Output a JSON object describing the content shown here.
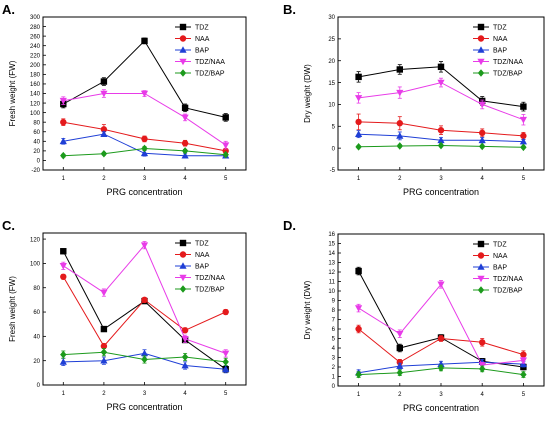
{
  "figure": {
    "panel_labels": [
      "A.",
      "B.",
      "C.",
      "D."
    ]
  },
  "colors": {
    "TDZ": "#000000",
    "NAA": "#e41a1c",
    "BAP": "#1f3fd6",
    "TDZ/NAA": "#e83be8",
    "TDZ/BAP": "#1c9a1c"
  },
  "chart_data": [
    {
      "panel": "A.",
      "type": "line",
      "xlabel": "PRG concentration",
      "ylabel": "Fresh weight (FW)",
      "x": [
        1,
        2,
        3,
        4,
        5
      ],
      "xlim": [
        0.5,
        5.5
      ],
      "ylim": [
        -20,
        300
      ],
      "yticks": [
        -20,
        0,
        20,
        40,
        60,
        80,
        100,
        120,
        140,
        160,
        180,
        200,
        220,
        240,
        260,
        280,
        300
      ],
      "legend_position": "top-right",
      "series": [
        {
          "name": "TDZ",
          "marker": "square",
          "values": [
            118,
            165,
            250,
            110,
            90
          ],
          "errors": [
            8,
            8,
            6,
            8,
            8
          ]
        },
        {
          "name": "NAA",
          "marker": "circle",
          "values": [
            80,
            65,
            45,
            36,
            20
          ],
          "errors": [
            7,
            10,
            6,
            6,
            5
          ]
        },
        {
          "name": "BAP",
          "marker": "triangle-up",
          "values": [
            40,
            55,
            15,
            10,
            10
          ],
          "errors": [
            6,
            5,
            6,
            5,
            4
          ]
        },
        {
          "name": "TDZ/NAA",
          "marker": "triangle-down",
          "values": [
            125,
            140,
            140,
            90,
            32
          ],
          "errors": [
            8,
            8,
            6,
            7,
            8
          ]
        },
        {
          "name": "TDZ/BAP",
          "marker": "diamond",
          "values": [
            10,
            14,
            25,
            20,
            12
          ],
          "errors": [
            3,
            3,
            4,
            3,
            3
          ]
        }
      ]
    },
    {
      "panel": "B.",
      "type": "line",
      "xlabel": "PRG concentration",
      "ylabel": "Dry weight (DW)",
      "x": [
        1,
        2,
        3,
        4,
        5
      ],
      "xlim": [
        0.5,
        5.5
      ],
      "ylim": [
        -5,
        30
      ],
      "yticks": [
        -5,
        0,
        5,
        10,
        15,
        20,
        25,
        30
      ],
      "legend_position": "top-right",
      "series": [
        {
          "name": "TDZ",
          "marker": "square",
          "values": [
            16.3,
            18,
            18.6,
            10.8,
            9.5
          ],
          "errors": [
            1.2,
            1.1,
            1.2,
            1.0,
            1.0
          ]
        },
        {
          "name": "NAA",
          "marker": "circle",
          "values": [
            6,
            5.7,
            4.1,
            3.5,
            2.8
          ],
          "errors": [
            1.8,
            1.5,
            1.0,
            0.9,
            0.8
          ]
        },
        {
          "name": "BAP",
          "marker": "triangle-up",
          "values": [
            3.2,
            2.8,
            1.8,
            1.8,
            1.5
          ],
          "errors": [
            0.8,
            0.9,
            0.6,
            0.6,
            0.5
          ]
        },
        {
          "name": "TDZ/NAA",
          "marker": "triangle-down",
          "values": [
            11.5,
            12.7,
            15,
            10,
            6.5
          ],
          "errors": [
            1.2,
            1.3,
            1.0,
            1.0,
            1.2
          ]
        },
        {
          "name": "TDZ/BAP",
          "marker": "diamond",
          "values": [
            0.3,
            0.5,
            0.6,
            0.4,
            0.2
          ],
          "errors": [
            0.3,
            0.3,
            0.3,
            0.3,
            0.3
          ]
        }
      ]
    },
    {
      "panel": "C.",
      "type": "line",
      "xlabel": "PRG concentration",
      "ylabel": "Fresh weight (FW)",
      "x": [
        1,
        2,
        3,
        4,
        5
      ],
      "xlim": [
        0.5,
        5.5
      ],
      "ylim": [
        0,
        125
      ],
      "yticks": [
        0,
        20,
        40,
        60,
        80,
        100,
        120
      ],
      "legend_position": "top-right",
      "series": [
        {
          "name": "TDZ",
          "marker": "square",
          "values": [
            110,
            46,
            69,
            37,
            13
          ],
          "errors": [
            2,
            2,
            2,
            2,
            2
          ]
        },
        {
          "name": "NAA",
          "marker": "circle",
          "values": [
            89,
            32,
            70,
            45,
            60
          ],
          "errors": [
            2,
            2,
            2,
            2,
            2
          ]
        },
        {
          "name": "BAP",
          "marker": "triangle-up",
          "values": [
            19,
            20,
            26,
            16,
            13
          ],
          "errors": [
            3,
            3,
            3,
            3,
            3
          ]
        },
        {
          "name": "TDZ/NAA",
          "marker": "triangle-down",
          "values": [
            98,
            76,
            115,
            38,
            26
          ],
          "errors": [
            3,
            3,
            3,
            3,
            3
          ]
        },
        {
          "name": "TDZ/BAP",
          "marker": "diamond",
          "values": [
            25,
            27,
            21,
            23,
            19
          ],
          "errors": [
            3,
            3,
            3,
            3,
            3
          ]
        }
      ]
    },
    {
      "panel": "D.",
      "type": "line",
      "xlabel": "PRG concentration",
      "ylabel": "Dry weight (DW)",
      "x": [
        1,
        2,
        3,
        4,
        5
      ],
      "xlim": [
        0.5,
        5.5
      ],
      "ylim": [
        0,
        16
      ],
      "yticks": [
        0,
        1,
        2,
        3,
        4,
        5,
        6,
        7,
        8,
        9,
        10,
        11,
        12,
        13,
        14,
        15,
        16
      ],
      "legend_position": "top-right",
      "series": [
        {
          "name": "TDZ",
          "marker": "square",
          "values": [
            12.1,
            4,
            5.1,
            2.6,
            2
          ],
          "errors": [
            0.4,
            0.4,
            0.3,
            0.3,
            0.3
          ]
        },
        {
          "name": "NAA",
          "marker": "circle",
          "values": [
            6,
            2.5,
            5,
            4.6,
            3.3
          ],
          "errors": [
            0.4,
            0.3,
            0.3,
            0.4,
            0.4
          ]
        },
        {
          "name": "BAP",
          "marker": "triangle-up",
          "values": [
            1.4,
            2.1,
            2.3,
            2.5,
            2.3
          ],
          "errors": [
            0.3,
            0.3,
            0.3,
            0.3,
            0.3
          ]
        },
        {
          "name": "TDZ/NAA",
          "marker": "triangle-down",
          "values": [
            8.2,
            5.5,
            10.7,
            2.2,
            2.7
          ],
          "errors": [
            0.4,
            0.4,
            0.4,
            0.3,
            0.3
          ]
        },
        {
          "name": "TDZ/BAP",
          "marker": "diamond",
          "values": [
            1.2,
            1.4,
            1.9,
            1.8,
            1.2
          ],
          "errors": [
            0.3,
            0.3,
            0.3,
            0.3,
            0.3
          ]
        }
      ]
    }
  ]
}
